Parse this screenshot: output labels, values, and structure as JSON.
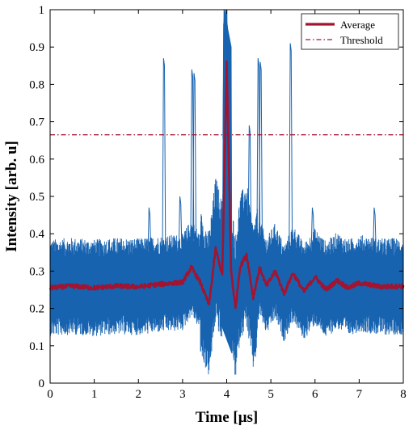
{
  "chart_data": {
    "type": "line",
    "xlabel": "Time [μs]",
    "ylabel": "Intensity [arb. u]",
    "xlim": [
      0,
      8
    ],
    "ylim": [
      0,
      1
    ],
    "xticks": [
      "0",
      "1",
      "2",
      "3",
      "4",
      "5",
      "6",
      "7",
      "8"
    ],
    "yticks": [
      "0",
      "0.1",
      "0.2",
      "0.3",
      "0.4",
      "0.5",
      "0.6",
      "0.7",
      "0.8",
      "0.9",
      "1"
    ],
    "grid": false,
    "legend_position": "top-right",
    "colors": {
      "traces": "#1763b0",
      "average": "#a2142f",
      "threshold": "#a2142f"
    },
    "series": [
      {
        "name": "Average",
        "style": "solid",
        "x": [
          0,
          0.5,
          1,
          1.5,
          2,
          2.5,
          3,
          3.2,
          3.4,
          3.6,
          3.75,
          3.9,
          4.0,
          4.1,
          4.2,
          4.3,
          4.45,
          4.6,
          4.75,
          4.9,
          5.1,
          5.3,
          5.5,
          5.75,
          6.0,
          6.25,
          6.5,
          6.75,
          7.0,
          7.5,
          8.0
        ],
        "y": [
          0.255,
          0.26,
          0.255,
          0.26,
          0.258,
          0.265,
          0.27,
          0.31,
          0.27,
          0.21,
          0.36,
          0.29,
          0.86,
          0.3,
          0.2,
          0.31,
          0.345,
          0.23,
          0.31,
          0.26,
          0.3,
          0.24,
          0.295,
          0.245,
          0.285,
          0.25,
          0.275,
          0.255,
          0.268,
          0.258,
          0.26
        ]
      },
      {
        "name": "Threshold",
        "style": "dash-dot",
        "x": [
          0,
          8
        ],
        "y": [
          0.665,
          0.665
        ]
      }
    ],
    "traces": {
      "description_free": true,
      "baseline_mean": 0.255,
      "baseline_spread": 0.13,
      "spikes": [
        {
          "x": 2.58,
          "y": 0.87
        },
        {
          "x": 3.22,
          "y": 0.84
        },
        {
          "x": 3.27,
          "y": 0.83
        },
        {
          "x": 3.95,
          "y": 1.0
        },
        {
          "x": 4.05,
          "y": 0.93
        },
        {
          "x": 4.52,
          "y": 0.69
        },
        {
          "x": 4.72,
          "y": 0.87
        },
        {
          "x": 4.77,
          "y": 0.86
        },
        {
          "x": 5.45,
          "y": 0.91
        },
        {
          "x": 2.25,
          "y": 0.47
        },
        {
          "x": 2.95,
          "y": 0.5
        },
        {
          "x": 5.95,
          "y": 0.47
        },
        {
          "x": 7.35,
          "y": 0.47
        }
      ]
    }
  }
}
